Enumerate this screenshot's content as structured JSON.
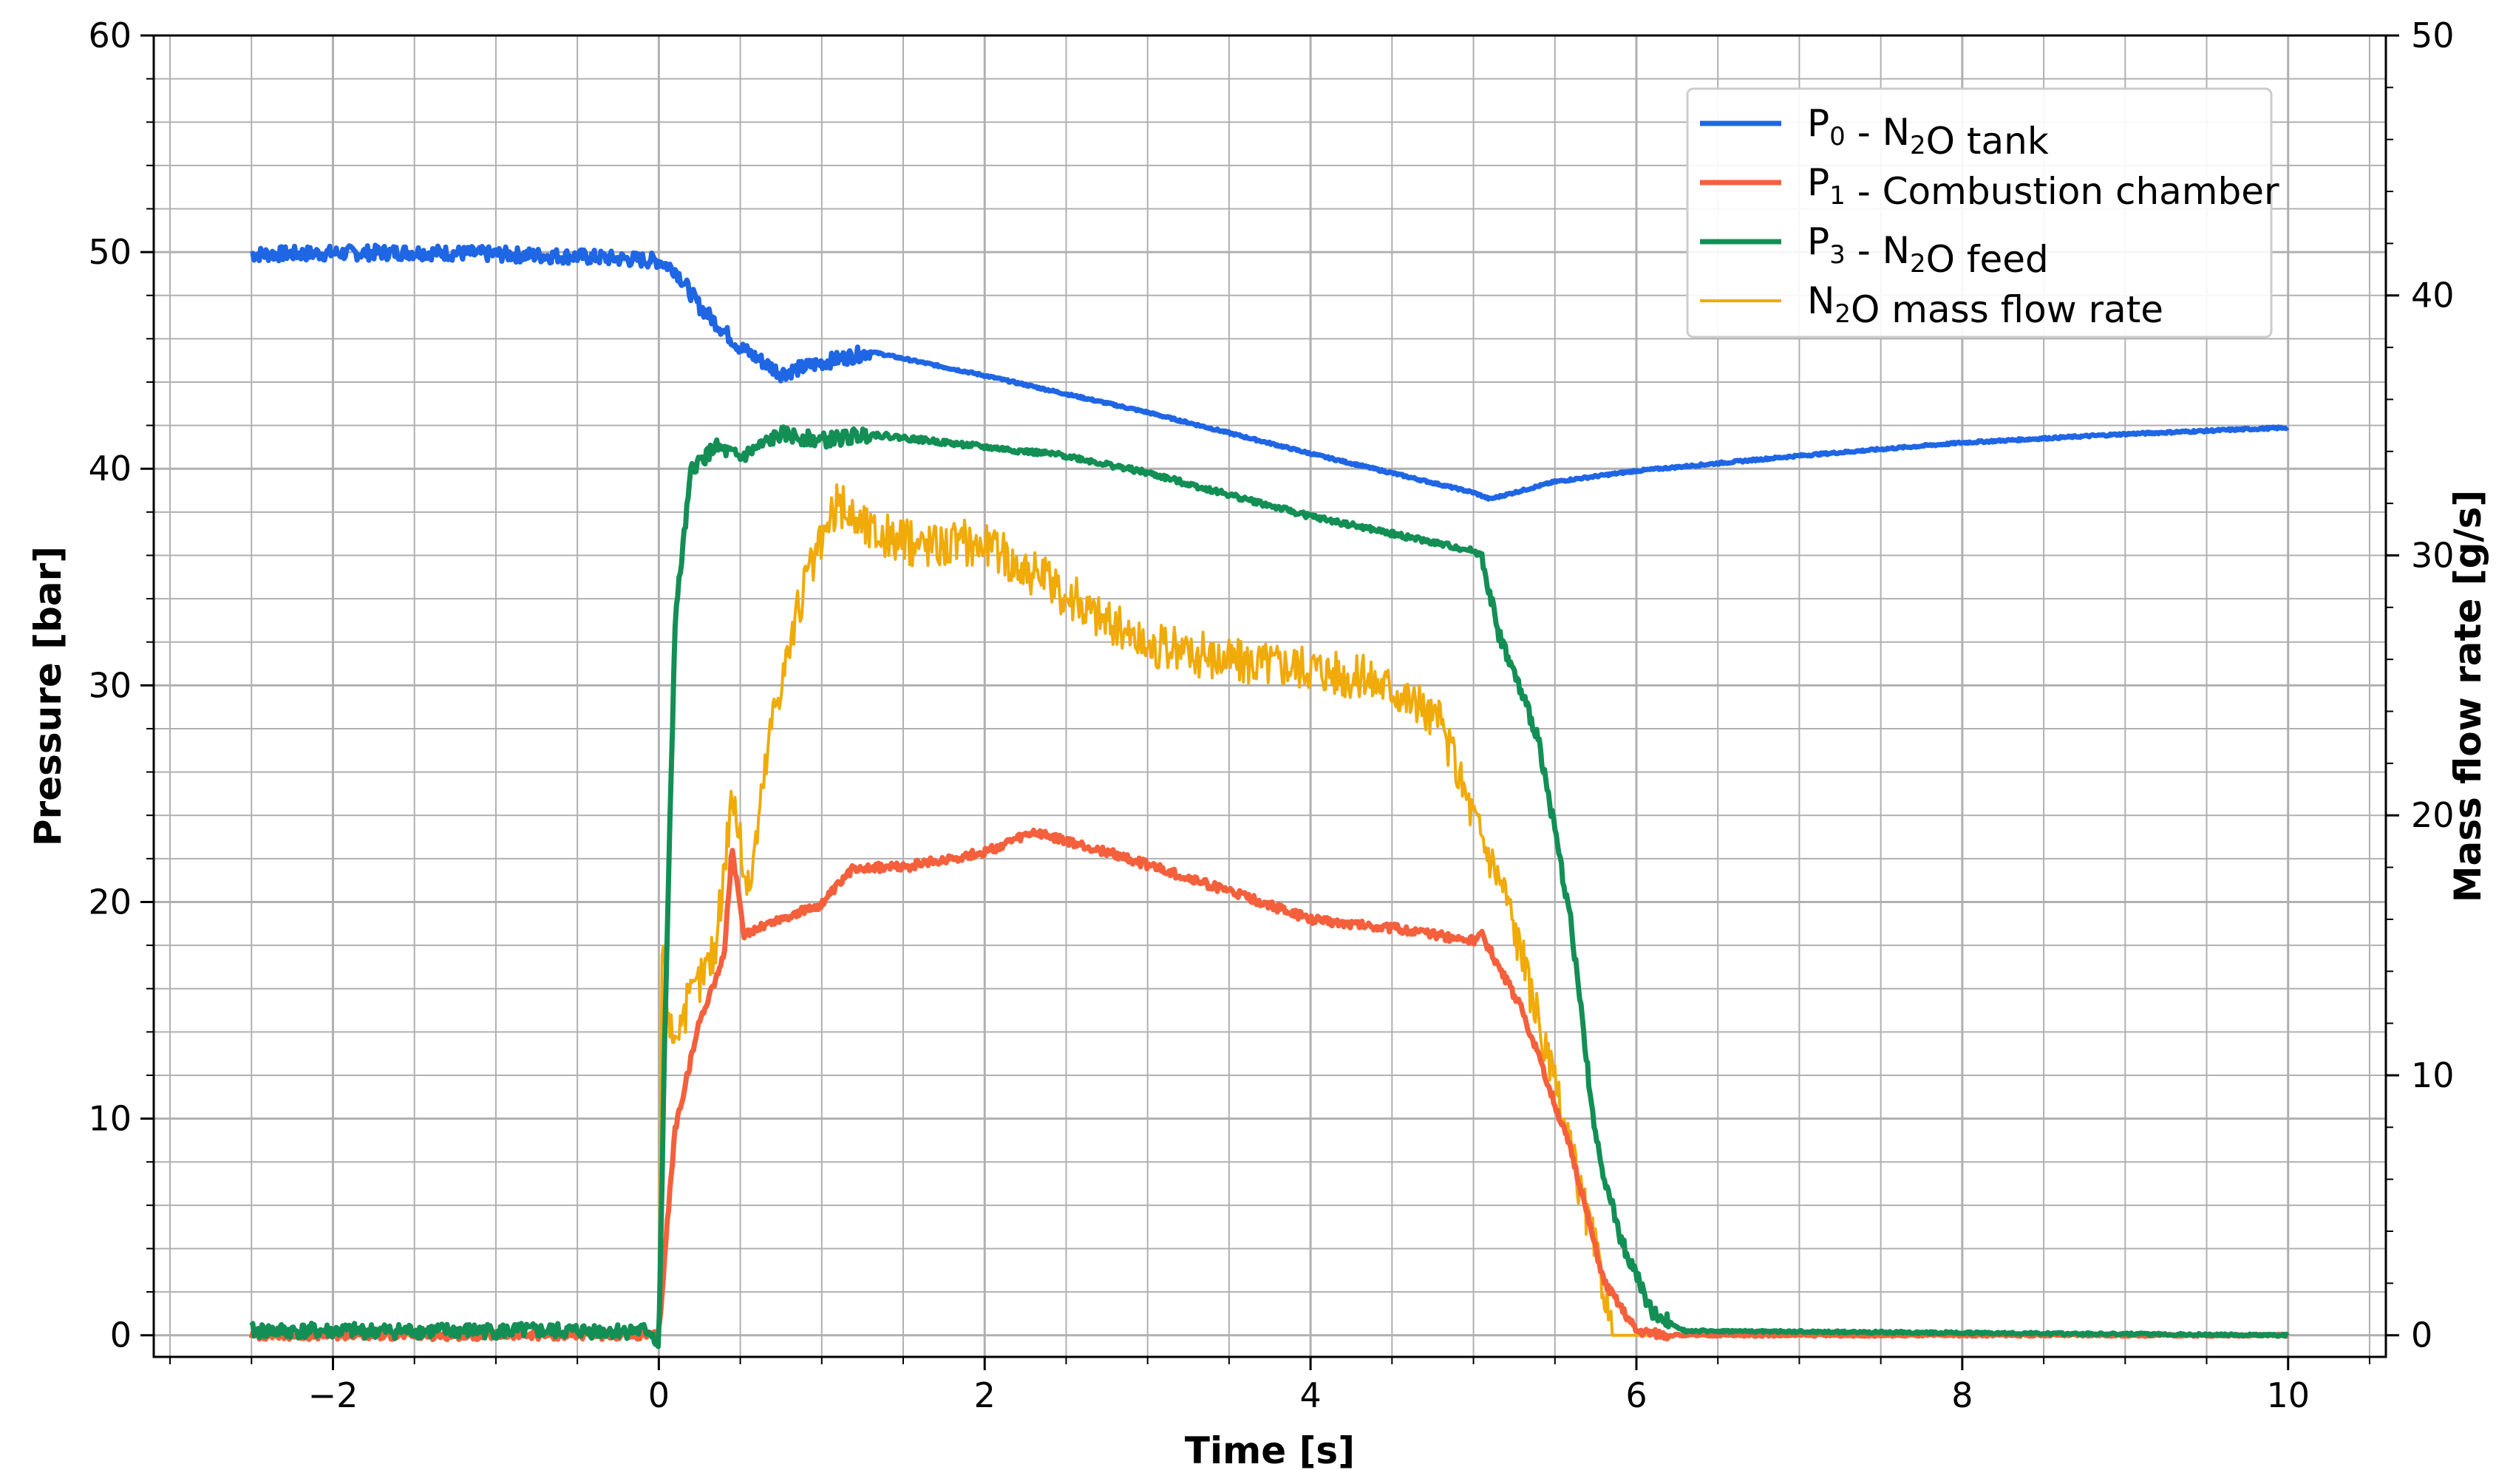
{
  "chart_data": {
    "type": "line",
    "xlabel": "Time [s]",
    "ylabel": "Pressure [bar]",
    "y2label": "Mass flow rate [g/s]",
    "xlim": [
      -3.1,
      10.6
    ],
    "ylim": [
      -1,
      60
    ],
    "y2lim": [
      -0.833,
      50
    ],
    "xticks": [
      -2,
      0,
      2,
      4,
      6,
      8,
      10
    ],
    "xtick_labels": [
      "−2",
      "0",
      "2",
      "4",
      "6",
      "8",
      "10"
    ],
    "yticks": [
      0,
      10,
      20,
      30,
      40,
      50,
      60
    ],
    "y2ticks": [
      0,
      10,
      20,
      30,
      40,
      50
    ],
    "grid": "on (major and minor)",
    "legend_position": "top-right",
    "series": [
      {
        "name": "P0 - N2O tank",
        "legend_main": "P",
        "legend_sub": "0",
        "legend_text": " - N",
        "legend_sub2": "2",
        "legend_tail": "O tank",
        "axis": "left",
        "color": "#1f66e5",
        "noise": 0.35,
        "points": [
          [
            -2.5,
            49.9
          ],
          [
            -1.5,
            50.0
          ],
          [
            -0.5,
            49.8
          ],
          [
            0.0,
            49.6
          ],
          [
            0.1,
            49.2
          ],
          [
            0.25,
            47.5
          ],
          [
            0.5,
            45.6
          ],
          [
            0.75,
            44.4
          ],
          [
            1.0,
            44.9
          ],
          [
            1.3,
            45.4
          ],
          [
            2.0,
            44.3
          ],
          [
            3.0,
            42.6
          ],
          [
            4.0,
            40.7
          ],
          [
            5.0,
            38.9
          ],
          [
            5.1,
            38.6
          ],
          [
            5.5,
            39.4
          ],
          [
            6.0,
            39.9
          ],
          [
            7.0,
            40.6
          ],
          [
            8.0,
            41.2
          ],
          [
            9.0,
            41.6
          ],
          [
            10.0,
            41.9
          ]
        ]
      },
      {
        "name": "P1 - Combustion chamber",
        "legend_main": "P",
        "legend_sub": "1",
        "legend_text": " - Combustion chamber",
        "legend_sub2": "",
        "legend_tail": "",
        "axis": "left",
        "color": "#f4603c",
        "noise": 0.2,
        "points": [
          [
            -2.5,
            0.0
          ],
          [
            0.0,
            0.0
          ],
          [
            0.05,
            5.0
          ],
          [
            0.1,
            9.5
          ],
          [
            0.25,
            14.5
          ],
          [
            0.4,
            17.5
          ],
          [
            0.45,
            22.5
          ],
          [
            0.52,
            18.5
          ],
          [
            0.6,
            18.8
          ],
          [
            1.0,
            19.9
          ],
          [
            1.2,
            21.6
          ],
          [
            1.5,
            21.6
          ],
          [
            2.0,
            22.3
          ],
          [
            2.3,
            23.2
          ],
          [
            2.8,
            22.2
          ],
          [
            3.5,
            20.5
          ],
          [
            4.0,
            19.2
          ],
          [
            4.5,
            18.8
          ],
          [
            5.0,
            18.2
          ],
          [
            5.05,
            18.5
          ],
          [
            5.3,
            15.0
          ],
          [
            5.6,
            8.5
          ],
          [
            5.8,
            2.5
          ],
          [
            6.0,
            0.2
          ],
          [
            6.2,
            0.0
          ],
          [
            10.0,
            0.0
          ]
        ]
      },
      {
        "name": "P3 - N2O feed",
        "legend_main": "P",
        "legend_sub": "3",
        "legend_text": " - N",
        "legend_sub2": "2",
        "legend_tail": "O feed",
        "axis": "left",
        "color": "#138f55",
        "noise": 0.35,
        "points": [
          [
            -2.5,
            0.2
          ],
          [
            -0.05,
            0.2
          ],
          [
            0.0,
            -0.5
          ],
          [
            0.04,
            15.0
          ],
          [
            0.1,
            33.0
          ],
          [
            0.2,
            40.0
          ],
          [
            0.35,
            41.0
          ],
          [
            0.5,
            40.5
          ],
          [
            0.75,
            41.6
          ],
          [
            1.0,
            41.3
          ],
          [
            1.3,
            41.6
          ],
          [
            2.0,
            41.0
          ],
          [
            2.5,
            40.6
          ],
          [
            3.0,
            39.8
          ],
          [
            4.0,
            37.8
          ],
          [
            5.0,
            36.2
          ],
          [
            5.05,
            36.0
          ],
          [
            5.15,
            32.5
          ],
          [
            5.4,
            27.5
          ],
          [
            5.6,
            19.0
          ],
          [
            5.75,
            9.0
          ],
          [
            5.9,
            4.5
          ],
          [
            6.1,
            1.0
          ],
          [
            6.3,
            0.2
          ],
          [
            10.0,
            0.0
          ]
        ]
      },
      {
        "name": "N2O mass flow rate",
        "legend_main": "N",
        "legend_sub": "2",
        "legend_text": "O mass flow rate",
        "legend_sub2": "",
        "legend_tail": "",
        "axis": "right",
        "color": "#f0aa0a",
        "noise": 0.9,
        "points": [
          [
            -2.5,
            0.0
          ],
          [
            0.0,
            0.0
          ],
          [
            0.02,
            15.0
          ],
          [
            0.08,
            11.5
          ],
          [
            0.2,
            13.0
          ],
          [
            0.35,
            15.0
          ],
          [
            0.45,
            21.0
          ],
          [
            0.55,
            17.0
          ],
          [
            0.7,
            24.0
          ],
          [
            0.9,
            29.0
          ],
          [
            1.1,
            32.0
          ],
          [
            1.3,
            31.0
          ],
          [
            1.5,
            30.5
          ],
          [
            2.0,
            30.5
          ],
          [
            2.5,
            28.5
          ],
          [
            3.0,
            26.5
          ],
          [
            3.5,
            26.0
          ],
          [
            4.0,
            25.8
          ],
          [
            4.5,
            25.0
          ],
          [
            4.8,
            23.5
          ],
          [
            5.0,
            20.0
          ],
          [
            5.2,
            17.0
          ],
          [
            5.4,
            12.0
          ],
          [
            5.6,
            7.0
          ],
          [
            5.8,
            2.0
          ],
          [
            5.85,
            0.0
          ],
          [
            10.0,
            0.0
          ]
        ]
      }
    ]
  }
}
